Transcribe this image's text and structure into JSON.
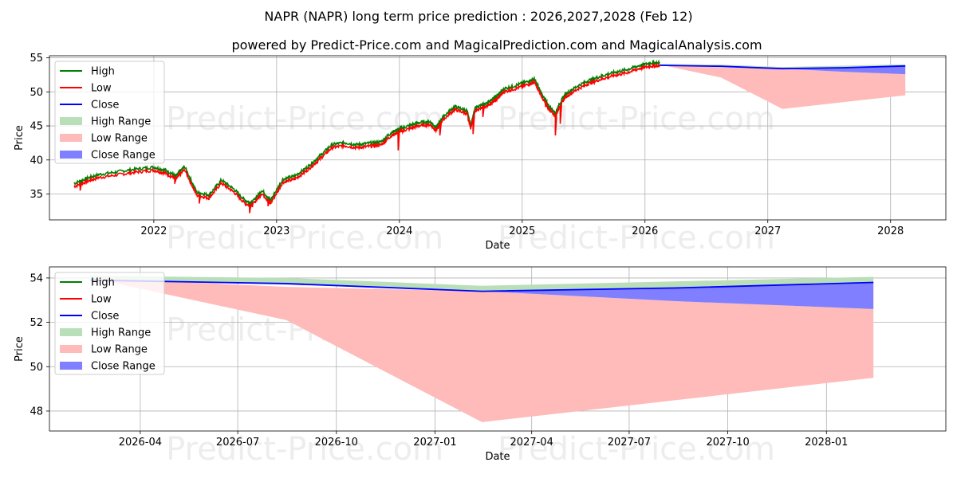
{
  "title": "NAPR (NAPR) long term price prediction : 2026,2027,2028 (Feb 12)",
  "subtitle": "powered by Predict-Price.com and MagicalPrediction.com and MagicalAnalysis.com",
  "watermark": "Predict-Price.com",
  "colors": {
    "high": "#008000",
    "low": "#ff0000",
    "close": "#0000ff",
    "high_range": "#b9dfb9",
    "low_range": "#ffbaba",
    "close_range": "#7f7fff"
  },
  "chart_data": [
    {
      "type": "line",
      "name": "history",
      "xlabel": "Date",
      "ylabel": "Price",
      "xlim": [
        2021.15,
        2028.45
      ],
      "ylim": [
        31.2,
        55.3
      ],
      "x_ticks": [
        2022,
        2023,
        2024,
        2025,
        2026,
        2027,
        2028
      ],
      "x_tick_labels": [
        "2022",
        "2023",
        "2024",
        "2025",
        "2026",
        "2027",
        "2028"
      ],
      "y_ticks": [
        35,
        40,
        45,
        50,
        55
      ],
      "y_tick_labels": [
        "35",
        "40",
        "45",
        "50",
        "55"
      ],
      "legend": [
        "High",
        "Low",
        "Close",
        "High Range",
        "Low Range",
        "Close Range"
      ],
      "legend_position": "upper-left",
      "history_x": [
        2021.35,
        2021.45,
        2021.55,
        2021.7,
        2021.85,
        2022.0,
        2022.1,
        2022.18,
        2022.25,
        2022.35,
        2022.45,
        2022.55,
        2022.65,
        2022.75,
        2022.8,
        2022.88,
        2022.95,
        2023.05,
        2023.15,
        2023.25,
        2023.35,
        2023.45,
        2023.55,
        2023.65,
        2023.75,
        2023.85,
        2023.93,
        2023.98,
        2024.05,
        2024.15,
        2024.25,
        2024.3,
        2024.35,
        2024.45,
        2024.55,
        2024.58,
        2024.62,
        2024.7,
        2024.75,
        2024.8,
        2024.85,
        2024.95,
        2025.05,
        2025.1,
        2025.15,
        2025.2,
        2025.27,
        2025.3,
        2025.35,
        2025.45,
        2025.55,
        2025.65,
        2025.75,
        2025.85,
        2025.95,
        2026.05,
        2026.12
      ],
      "history_close": [
        36.3,
        37.0,
        37.6,
        38.0,
        38.4,
        38.7,
        38.2,
        37.4,
        38.8,
        35.0,
        34.6,
        36.8,
        35.5,
        33.7,
        33.5,
        35.3,
        33.8,
        36.9,
        37.4,
        38.7,
        40.3,
        42.0,
        42.3,
        42.0,
        42.2,
        42.4,
        43.7,
        44.2,
        44.6,
        45.2,
        45.4,
        44.5,
        46.0,
        47.6,
        47.0,
        44.9,
        47.5,
        48.0,
        48.6,
        49.2,
        50.2,
        50.7,
        51.3,
        51.6,
        49.8,
        48.1,
        46.6,
        47.9,
        49.4,
        50.6,
        51.5,
        52.1,
        52.6,
        53.0,
        53.6,
        54.0,
        54.0
      ],
      "spikes": [
        [
          2021.4,
          35.7
        ],
        [
          2022.17,
          36.7
        ],
        [
          2022.37,
          33.8
        ],
        [
          2022.78,
          32.4
        ],
        [
          2022.93,
          33.4
        ],
        [
          2023.99,
          41.6
        ],
        [
          2024.33,
          43.8
        ],
        [
          2024.6,
          44.0
        ],
        [
          2024.68,
          46.5
        ],
        [
          2025.19,
          48.0
        ],
        [
          2025.27,
          43.8
        ],
        [
          2025.31,
          45.5
        ]
      ]
    },
    {
      "type": "area",
      "name": "forecast",
      "xlabel": "Date",
      "ylabel": "Price",
      "xlim": [
        2026.015,
        2028.305
      ],
      "ylim": [
        47.1,
        54.5
      ],
      "x_ticks": [
        2026.247,
        2026.496,
        2026.748,
        2027.0,
        2027.247,
        2027.496,
        2027.748,
        2028.0
      ],
      "x_tick_labels": [
        "2026-04",
        "2026-07",
        "2026-10",
        "2027-01",
        "2027-04",
        "2027-07",
        "2027-10",
        "2028-01"
      ],
      "y_ticks": [
        48,
        50,
        52,
        54
      ],
      "y_tick_labels": [
        "48",
        "50",
        "52",
        "54"
      ],
      "legend": [
        "High",
        "Low",
        "Close",
        "High Range",
        "Low Range",
        "Close Range"
      ],
      "legend_position": "upper-left",
      "x": [
        2026.12,
        2026.62,
        2027.12,
        2027.62,
        2028.12
      ],
      "close": [
        53.9,
        53.75,
        53.4,
        53.55,
        53.8
      ],
      "high_range_top": [
        54.1,
        54.0,
        53.65,
        53.85,
        54.05
      ],
      "low_range_bottom": [
        54.0,
        52.1,
        47.5,
        48.5,
        49.5
      ],
      "low_range_top": [
        54.0,
        53.6,
        53.4,
        52.95,
        52.6
      ],
      "close_range_bottom": [
        53.9,
        53.7,
        53.4,
        52.95,
        52.6
      ]
    }
  ]
}
